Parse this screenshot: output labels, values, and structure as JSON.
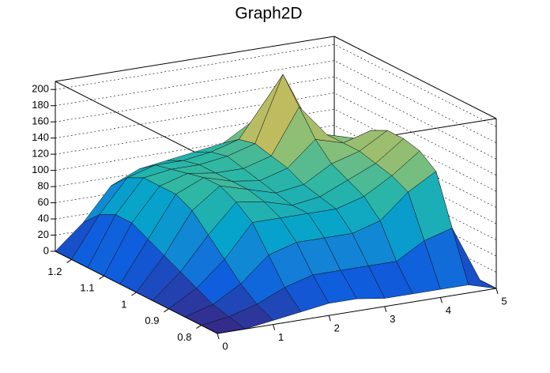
{
  "chart_data": {
    "type": "surface",
    "title": "Graph2D",
    "x": [
      0,
      0.5,
      1,
      1.5,
      2,
      2.5,
      3,
      3.5,
      4,
      4.5,
      5
    ],
    "y": [
      0.75,
      0.8,
      0.85,
      0.9,
      0.95,
      1,
      1.05,
      1.1,
      1.15,
      1.2,
      1.25
    ],
    "z": [
      [
        0,
        0,
        5,
        10,
        15,
        15,
        10,
        10,
        10,
        10,
        0
      ],
      [
        0,
        5,
        15,
        30,
        40,
        40,
        40,
        40,
        60,
        70,
        0
      ],
      [
        0,
        10,
        30,
        60,
        70,
        70,
        70,
        80,
        110,
        130,
        0
      ],
      [
        0,
        20,
        50,
        90,
        90,
        90,
        90,
        100,
        120,
        145,
        0
      ],
      [
        0,
        30,
        70,
        105,
        100,
        90,
        95,
        110,
        125,
        150,
        0
      ],
      [
        0,
        40,
        90,
        115,
        105,
        95,
        100,
        120,
        130,
        150,
        0
      ],
      [
        0,
        50,
        100,
        115,
        105,
        100,
        110,
        140,
        130,
        140,
        0
      ],
      [
        0,
        60,
        100,
        110,
        105,
        105,
        115,
        170,
        130,
        120,
        0
      ],
      [
        0,
        60,
        100,
        105,
        105,
        110,
        120,
        200,
        130,
        100,
        0
      ],
      [
        0,
        50,
        90,
        100,
        100,
        105,
        115,
        160,
        120,
        80,
        0
      ],
      [
        0,
        30,
        70,
        85,
        90,
        95,
        100,
        120,
        100,
        60,
        0
      ]
    ],
    "xlim": [
      0,
      5
    ],
    "ylim": [
      0.75,
      1.25
    ],
    "zlim": [
      0,
      210
    ],
    "xticks": [
      0,
      1,
      2,
      3,
      4,
      5
    ],
    "yticks": [
      0.8,
      0.9,
      1,
      1.1,
      1.2
    ],
    "zticks": [
      0,
      20,
      40,
      60,
      80,
      100,
      120,
      140,
      160,
      180,
      200
    ],
    "grid": true,
    "palette": [
      "#352a87",
      "#0f5cdd",
      "#1481d6",
      "#06a4ca",
      "#2eb7a4",
      "#87bf77",
      "#d1bb59",
      "#fec832",
      "#f9fb0e"
    ]
  }
}
